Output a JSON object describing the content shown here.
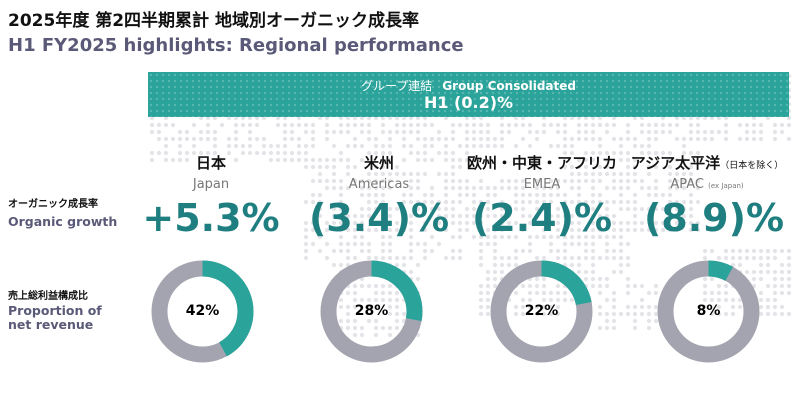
{
  "header": {
    "title_jp": "2025年度 第2四半期累計 地域別オーガニック成長率",
    "title_en": "H1 FY2025 highlights: Regional performance"
  },
  "banner": {
    "label_jp": "グループ連結",
    "label_en": "Group Consolidated",
    "value": "H1 (0.2)%"
  },
  "rows": {
    "growth_jp": "オーガニック成長率",
    "growth_en": "Organic growth",
    "proportion_jp": "売上総利益構成比",
    "proportion_en_1": "Proportion of",
    "proportion_en_2": "net revenue"
  },
  "regions": [
    {
      "name_jp": "日本",
      "name_jp_note": "",
      "name_en": "Japan",
      "name_en_note": "",
      "growth": "+5.3%",
      "share_label": "42%",
      "share": 0.42
    },
    {
      "name_jp": "米州",
      "name_jp_note": "",
      "name_en": "Americas",
      "name_en_note": "",
      "growth": "(3.4)%",
      "share_label": "28%",
      "share": 0.28
    },
    {
      "name_jp": "欧州・中東・アフリカ",
      "name_jp_note": "",
      "name_en": "EMEA",
      "name_en_note": "",
      "growth": "(2.4)%",
      "share_label": "22%",
      "share": 0.22
    },
    {
      "name_jp": "アジア太平洋",
      "name_jp_note": "（日本を除く）",
      "name_en": "APAC",
      "name_en_note": "(ex Japan)",
      "growth": "(8.9)%",
      "share_label": "8%",
      "share": 0.08
    }
  ],
  "colors": {
    "accent": "#2aa39a",
    "donut_track": "#a4a4b0",
    "growth_text": "#1f7f80",
    "subtitle": "#5a5a78"
  }
}
